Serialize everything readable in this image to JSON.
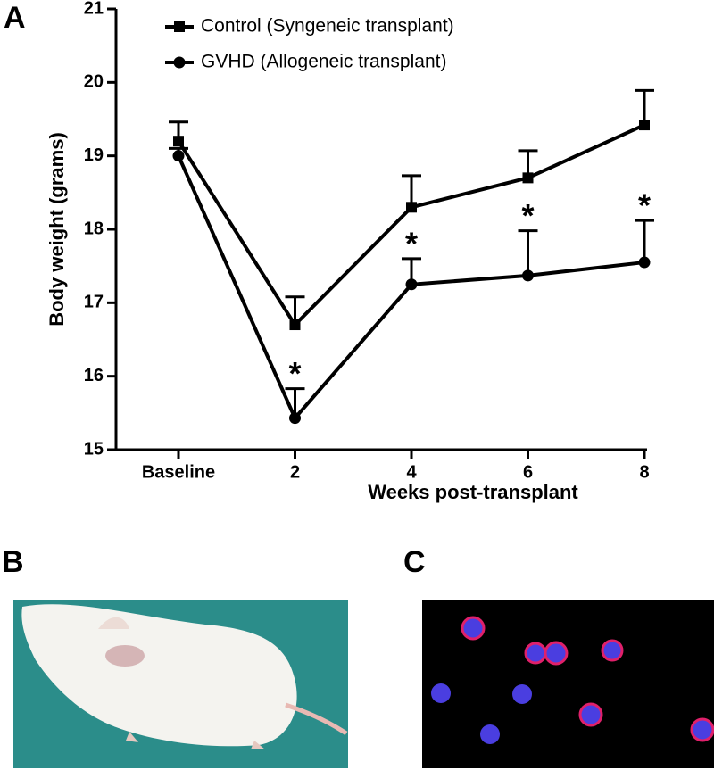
{
  "panels": {
    "a": "A",
    "b": "B",
    "c": "C"
  },
  "chart_data": {
    "type": "line",
    "y_label": "Body weight (grams)",
    "x_label": "Weeks post-transplant",
    "categories": [
      "Baseline",
      "2",
      "4",
      "6",
      "8"
    ],
    "series": [
      {
        "name": "Control (Syngeneic transplant)",
        "color": "#000000",
        "marker": "square",
        "values": [
          19.2,
          16.7,
          18.3,
          18.7,
          19.42
        ],
        "errors": [
          0.26,
          0.38,
          0.43,
          0.37,
          0.47
        ]
      },
      {
        "name": "GVHD (Allogeneic transplant)",
        "color": "#000000",
        "marker": "circle",
        "values": [
          19.0,
          15.43,
          17.25,
          17.37,
          17.55
        ],
        "errors": [
          0.1,
          0.4,
          0.35,
          0.61,
          0.57
        ]
      }
    ],
    "significance": [
      null,
      "*",
      "*",
      "*",
      "*"
    ],
    "ylim": [
      15,
      21
    ],
    "yticks": [
      15,
      16,
      17,
      18,
      19,
      20,
      21
    ],
    "legend": "upper left"
  }
}
